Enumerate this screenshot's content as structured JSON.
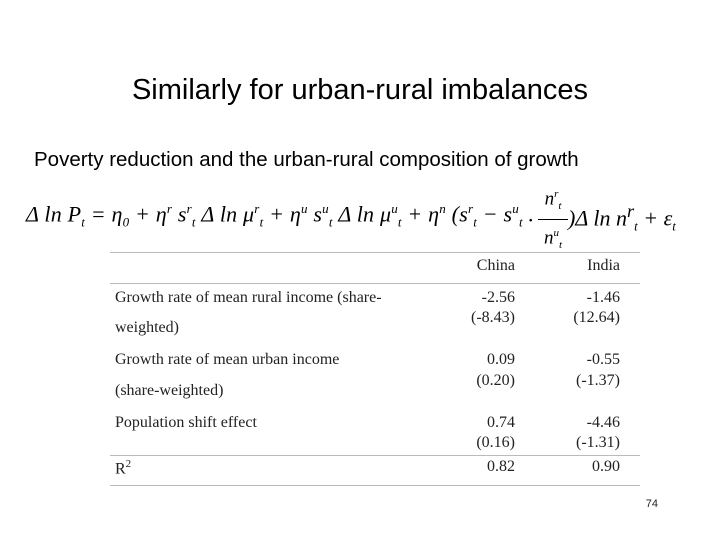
{
  "slide": {
    "title": "Similarly for urban-rural imbalances",
    "subtitle": "Poverty reduction and the urban-rural composition of growth",
    "page_number": "74"
  },
  "equation": {
    "lhs": "Δ ln P",
    "lhs_sub": "t",
    "rhs_1": " = η",
    "rhs_1_sub": "0",
    "rhs_2": " + η",
    "rhs_2_sup": "r",
    "rhs_3": " s",
    "rhs_3_sup": "r",
    "rhs_3_sub": "t",
    "rhs_4": " Δ ln μ",
    "rhs_4_sup": "r",
    "rhs_4_sub": "t",
    "rhs_5": " + η",
    "rhs_5_sup": "u",
    "rhs_6": " s",
    "rhs_6_sup": "u",
    "rhs_6_sub": "t",
    "rhs_7": " Δ ln μ",
    "rhs_7_sup": "u",
    "rhs_7_sub": "t",
    "rhs_8": " + η",
    "rhs_8_sup": "n",
    "rhs_9": " (s",
    "rhs_9_sup": "r",
    "rhs_9_sub": "t",
    "rhs_10": " − s",
    "rhs_10_sup": "u",
    "rhs_10_sub": "t",
    "rhs_11": " .",
    "frac_num": "n",
    "frac_num_sup": "r",
    "frac_num_sub": "t",
    "frac_den": "n",
    "frac_den_sup": "u",
    "frac_den_sub": "t",
    "tail": ")Δ ln n",
    "tail_sup": "r",
    "tail_sub": "t",
    "tail_2": " + ε",
    "tail_2_sub": "t"
  },
  "table": {
    "columns": [
      "China",
      "India"
    ],
    "rows": [
      {
        "label_1": "Growth rate of mean rural income (share-",
        "label_2": "weighted)",
        "china": "-2.56",
        "china_se": "(-8.43)",
        "india": "-1.46",
        "india_se": "(12.64)"
      },
      {
        "label_1": "Growth rate of mean urban income",
        "label_2": "(share-weighted)",
        "china": "0.09",
        "china_se": "(0.20)",
        "india": "-0.55",
        "india_se": "(-1.37)"
      },
      {
        "label_1": "Population shift effect",
        "label_2": "",
        "china": "0.74",
        "china_se": "(0.16)",
        "india": "-4.46",
        "india_se": "(-1.31)"
      }
    ],
    "r2_label": "R",
    "r2_sup": "2",
    "r2_china": "0.82",
    "r2_india": "0.90"
  }
}
